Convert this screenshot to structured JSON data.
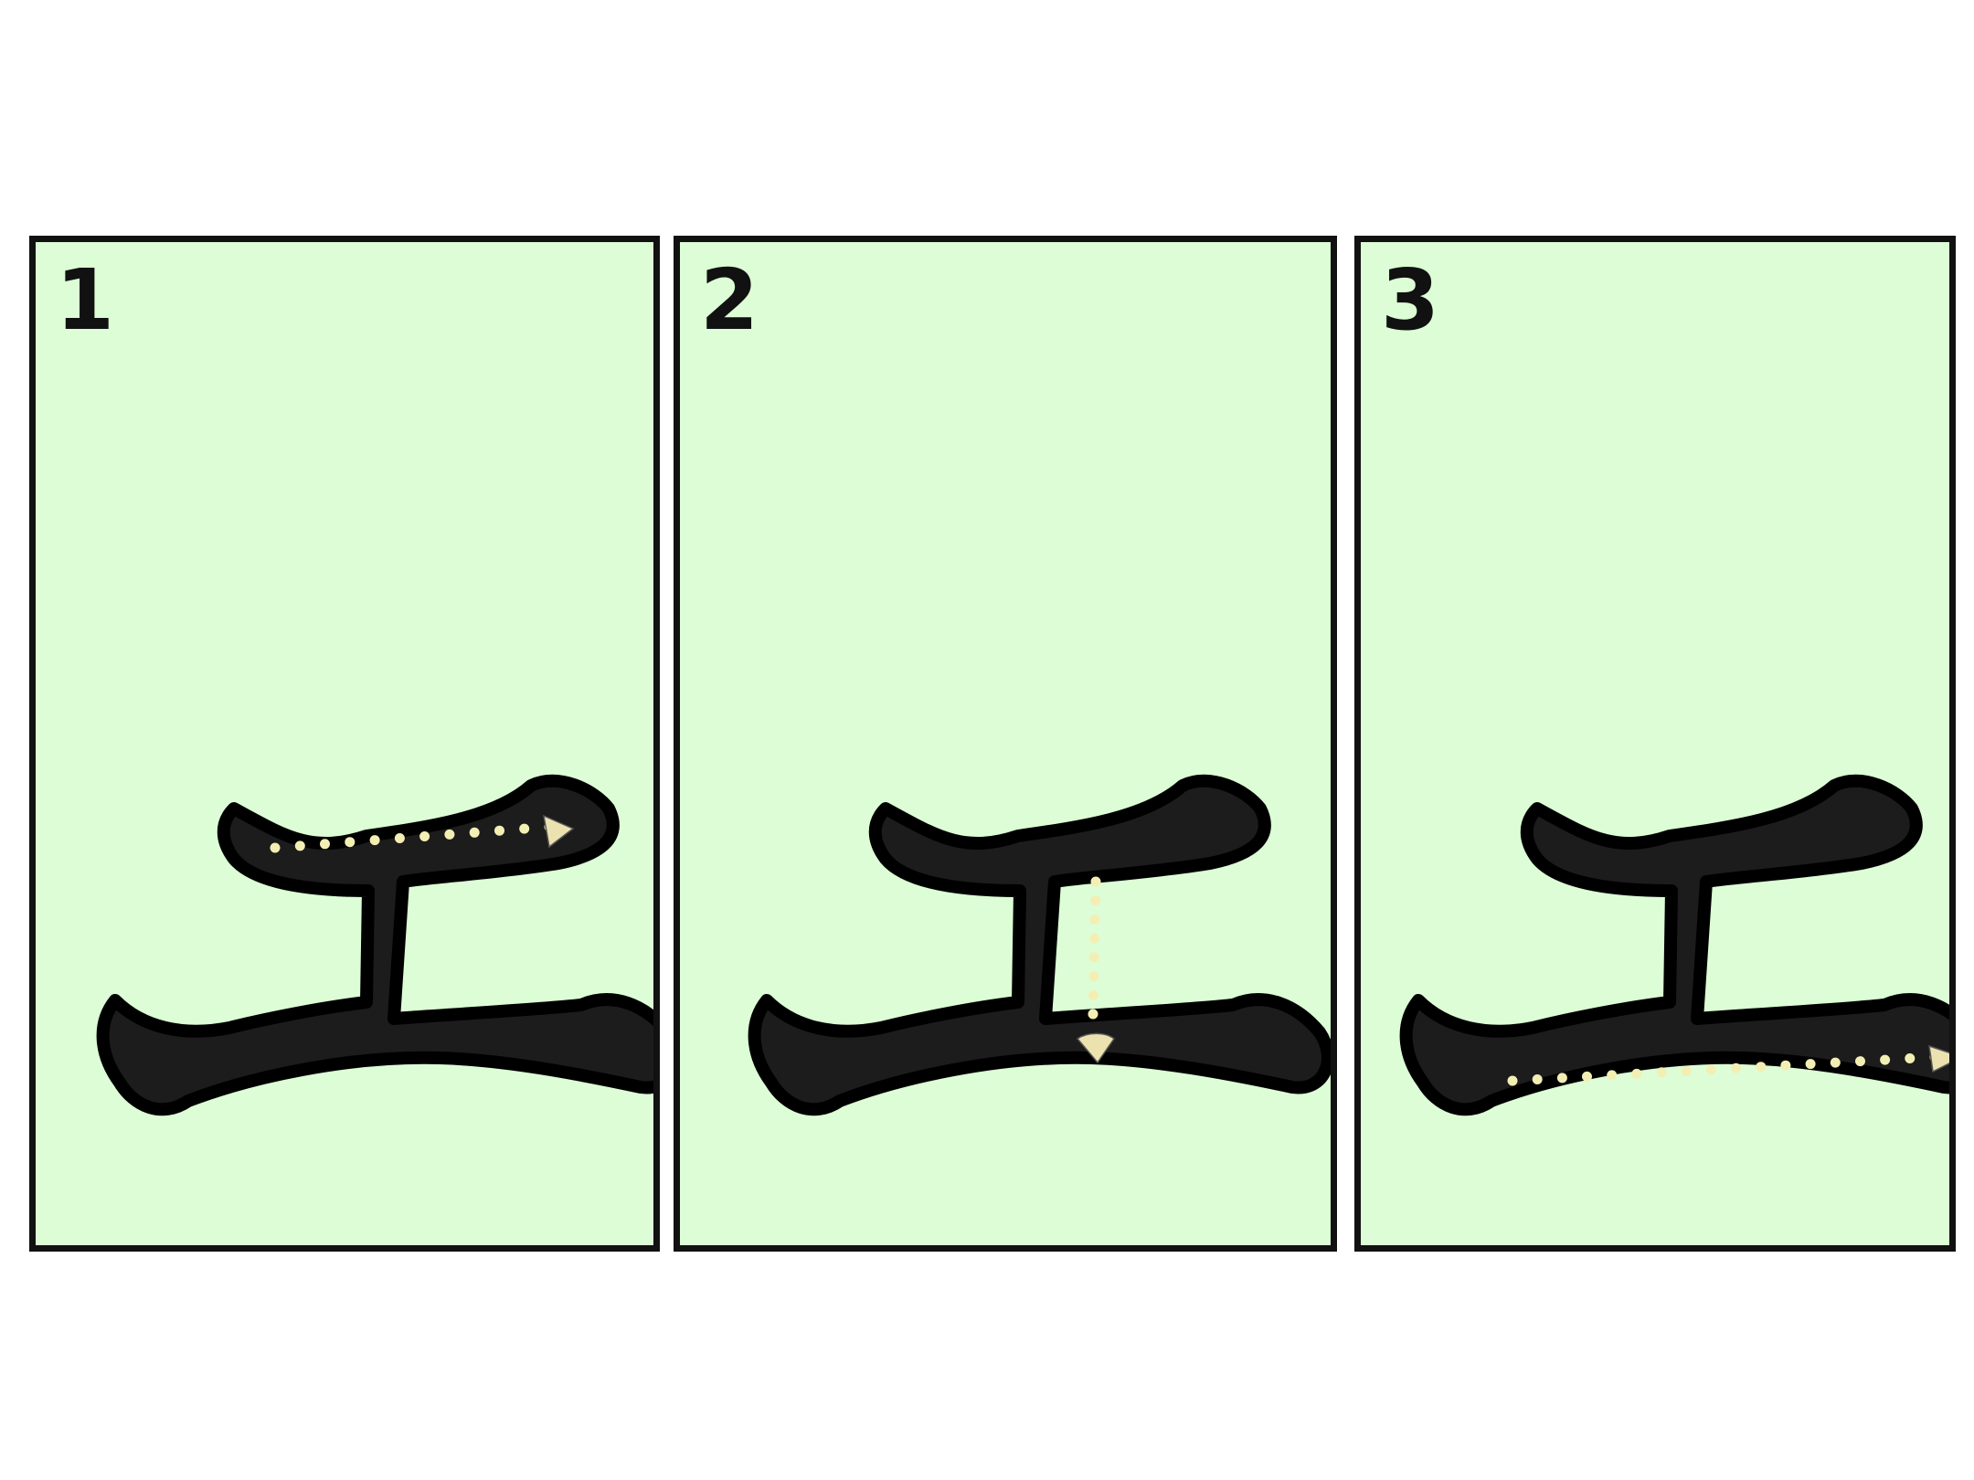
{
  "theme": {
    "card_fill": "#ddfdd6",
    "card_border": "#111111",
    "glyph_fill": "#1c1c1c",
    "glyph_outline": "#000000",
    "guide_dot_color": "#f3efb4",
    "guide_arrow_color": "#ece2b0"
  },
  "cards": [
    {
      "number": "1",
      "character": "工",
      "highlighted_stroke": "horizontal-top",
      "guide_direction": "left-to-right"
    },
    {
      "number": "2",
      "character": "工",
      "highlighted_stroke": "vertical",
      "guide_direction": "top-to-bottom"
    },
    {
      "number": "3",
      "character": "工",
      "highlighted_stroke": "horizontal-bottom",
      "guide_direction": "left-to-right"
    }
  ]
}
